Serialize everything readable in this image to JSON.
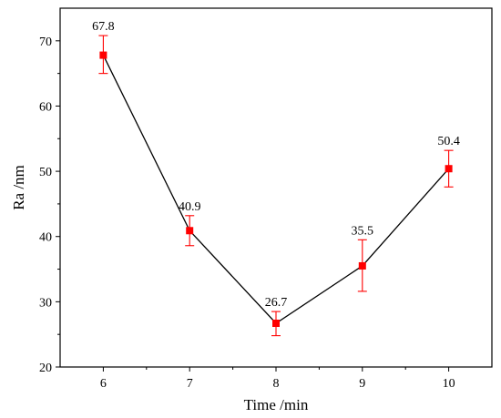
{
  "chart_data": {
    "type": "line",
    "title": "",
    "xlabel": "Time /min",
    "ylabel": "Ra /nm",
    "x": [
      6,
      7,
      8,
      9,
      10
    ],
    "xticks": [
      "6",
      "7",
      "8",
      "9",
      "10"
    ],
    "xlim": [
      5.5,
      10.5
    ],
    "ylim": [
      20,
      75
    ],
    "yticks": [
      "20",
      "30",
      "40",
      "50",
      "60",
      "70"
    ],
    "grid": false,
    "legend": "none",
    "series": [
      {
        "values": [
          67.8,
          40.9,
          26.7,
          35.5,
          50.4
        ],
        "error_low": [
          65.0,
          38.6,
          24.8,
          31.6,
          47.6
        ],
        "error_high": [
          70.8,
          43.2,
          28.5,
          39.5,
          53.2
        ],
        "data_labels": [
          "67.8",
          "40.9",
          "26.7",
          "35.5",
          "50.4"
        ],
        "line_color": "#000000",
        "marker_color": "#ff0000",
        "marker": "square"
      }
    ]
  }
}
